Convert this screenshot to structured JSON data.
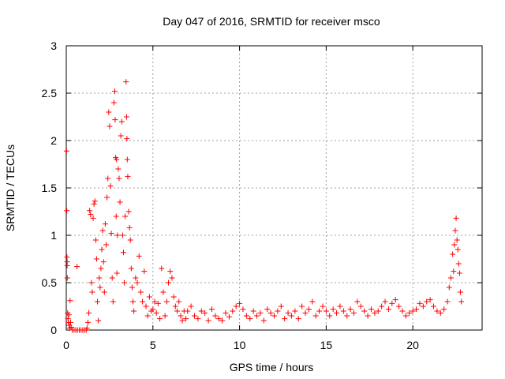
{
  "chart_data": {
    "type": "scatter",
    "title": "Day 047 of 2016, SRMTID for receiver msco",
    "xlabel": "GPS time / hours",
    "ylabel": "SRMTID / TECUs",
    "xlim": [
      0,
      24
    ],
    "ylim": [
      0,
      3
    ],
    "xticks": [
      "0",
      "5",
      "10",
      "15",
      "20"
    ],
    "yticks": [
      "0",
      "0.5",
      "1",
      "1.5",
      "2",
      "2.5",
      "3"
    ],
    "xtick_values": [
      0,
      5,
      10,
      15,
      20
    ],
    "ytick_values": [
      0,
      0.5,
      1,
      1.5,
      2,
      2.5,
      3
    ],
    "grid": true,
    "marker": "plus",
    "series": [
      {
        "name": "SRMTID",
        "color": "#ff0000",
        "points": [
          [
            0.02,
            1.89
          ],
          [
            0.03,
            1.26
          ],
          [
            0.04,
            0.77
          ],
          [
            0.05,
            0.72
          ],
          [
            0.05,
            0.68
          ],
          [
            0.06,
            0.55
          ],
          [
            0.08,
            0.18
          ],
          [
            0.1,
            0.12
          ],
          [
            0.12,
            0.08
          ],
          [
            0.15,
            0.16
          ],
          [
            0.18,
            0.05
          ],
          [
            0.2,
            0.02
          ],
          [
            0.22,
            0.31
          ],
          [
            0.25,
            0.08
          ],
          [
            0.28,
            0.03
          ],
          [
            0.35,
            0.0
          ],
          [
            0.45,
            0.0
          ],
          [
            0.55,
            0.0
          ],
          [
            0.62,
            0.67
          ],
          [
            0.65,
            0.0
          ],
          [
            0.75,
            0.0
          ],
          [
            0.85,
            0.0
          ],
          [
            0.95,
            0.0
          ],
          [
            1.05,
            0.0
          ],
          [
            1.15,
            0.0
          ],
          [
            1.2,
            0.02
          ],
          [
            1.25,
            0.08
          ],
          [
            1.3,
            0.18
          ],
          [
            1.35,
            1.26
          ],
          [
            1.4,
            1.22
          ],
          [
            1.45,
            0.5
          ],
          [
            1.5,
            0.4
          ],
          [
            1.55,
            1.18
          ],
          [
            1.6,
            1.33
          ],
          [
            1.65,
            1.36
          ],
          [
            1.7,
            0.95
          ],
          [
            1.75,
            0.75
          ],
          [
            1.8,
            0.3
          ],
          [
            1.85,
            0.1
          ],
          [
            1.9,
            0.55
          ],
          [
            1.95,
            0.45
          ],
          [
            2.0,
            0.65
          ],
          [
            2.05,
            0.85
          ],
          [
            2.1,
            1.05
          ],
          [
            2.15,
            0.72
          ],
          [
            2.2,
            0.4
          ],
          [
            2.25,
            1.12
          ],
          [
            2.3,
            0.9
          ],
          [
            2.35,
            1.4
          ],
          [
            2.4,
            1.6
          ],
          [
            2.45,
            2.3
          ],
          [
            2.5,
            2.15
          ],
          [
            2.55,
            1.52
          ],
          [
            2.6,
            1.02
          ],
          [
            2.65,
            0.55
          ],
          [
            2.7,
            0.3
          ],
          [
            2.75,
            2.4
          ],
          [
            2.8,
            2.52
          ],
          [
            2.82,
            2.22
          ],
          [
            2.85,
            1.82
          ],
          [
            2.88,
            1.2
          ],
          [
            2.9,
            1.8
          ],
          [
            2.92,
            0.6
          ],
          [
            2.95,
            1.0
          ],
          [
            3.0,
            1.7
          ],
          [
            3.05,
            1.6
          ],
          [
            3.1,
            1.35
          ],
          [
            3.15,
            2.05
          ],
          [
            3.2,
            2.2
          ],
          [
            3.25,
            1.0
          ],
          [
            3.3,
            0.82
          ],
          [
            3.35,
            0.5
          ],
          [
            3.4,
            1.2
          ],
          [
            3.45,
            2.62
          ],
          [
            3.48,
            2.25
          ],
          [
            3.5,
            2.02
          ],
          [
            3.52,
            1.8
          ],
          [
            3.55,
            1.62
          ],
          [
            3.6,
            1.25
          ],
          [
            3.65,
            1.08
          ],
          [
            3.7,
            0.95
          ],
          [
            3.75,
            0.65
          ],
          [
            3.8,
            0.45
          ],
          [
            3.85,
            0.3
          ],
          [
            3.9,
            0.2
          ],
          [
            4.0,
            0.55
          ],
          [
            4.1,
            0.5
          ],
          [
            4.2,
            0.78
          ],
          [
            4.3,
            0.4
          ],
          [
            4.4,
            0.3
          ],
          [
            4.5,
            0.62
          ],
          [
            4.6,
            0.25
          ],
          [
            4.7,
            0.15
          ],
          [
            4.8,
            0.35
          ],
          [
            4.9,
            0.2
          ],
          [
            5.0,
            0.22
          ],
          [
            5.1,
            0.3
          ],
          [
            5.2,
            0.18
          ],
          [
            5.3,
            0.28
          ],
          [
            5.4,
            0.12
          ],
          [
            5.5,
            0.65
          ],
          [
            5.6,
            0.4
          ],
          [
            5.7,
            0.15
          ],
          [
            5.8,
            0.3
          ],
          [
            5.9,
            0.5
          ],
          [
            6.0,
            0.62
          ],
          [
            6.1,
            0.55
          ],
          [
            6.2,
            0.35
          ],
          [
            6.3,
            0.25
          ],
          [
            6.4,
            0.2
          ],
          [
            6.5,
            0.3
          ],
          [
            6.6,
            0.15
          ],
          [
            6.7,
            0.1
          ],
          [
            6.8,
            0.2
          ],
          [
            6.9,
            0.12
          ],
          [
            7.0,
            0.2
          ],
          [
            7.2,
            0.25
          ],
          [
            7.4,
            0.15
          ],
          [
            7.6,
            0.12
          ],
          [
            7.8,
            0.2
          ],
          [
            8.0,
            0.18
          ],
          [
            8.2,
            0.1
          ],
          [
            8.4,
            0.22
          ],
          [
            8.6,
            0.15
          ],
          [
            8.8,
            0.12
          ],
          [
            9.0,
            0.1
          ],
          [
            9.2,
            0.18
          ],
          [
            9.4,
            0.14
          ],
          [
            9.6,
            0.2
          ],
          [
            9.8,
            0.25
          ],
          [
            10.0,
            0.28
          ],
          [
            10.2,
            0.22
          ],
          [
            10.4,
            0.15
          ],
          [
            10.6,
            0.12
          ],
          [
            10.8,
            0.2
          ],
          [
            11.0,
            0.15
          ],
          [
            11.2,
            0.18
          ],
          [
            11.4,
            0.1
          ],
          [
            11.6,
            0.22
          ],
          [
            11.8,
            0.18
          ],
          [
            12.0,
            0.15
          ],
          [
            12.2,
            0.2
          ],
          [
            12.4,
            0.25
          ],
          [
            12.6,
            0.12
          ],
          [
            12.8,
            0.18
          ],
          [
            13.0,
            0.15
          ],
          [
            13.2,
            0.2
          ],
          [
            13.4,
            0.12
          ],
          [
            13.6,
            0.25
          ],
          [
            13.8,
            0.18
          ],
          [
            14.0,
            0.22
          ],
          [
            14.2,
            0.3
          ],
          [
            14.4,
            0.15
          ],
          [
            14.6,
            0.2
          ],
          [
            14.8,
            0.25
          ],
          [
            15.0,
            0.2
          ],
          [
            15.2,
            0.15
          ],
          [
            15.4,
            0.22
          ],
          [
            15.6,
            0.18
          ],
          [
            15.8,
            0.25
          ],
          [
            16.0,
            0.2
          ],
          [
            16.2,
            0.15
          ],
          [
            16.4,
            0.22
          ],
          [
            16.6,
            0.18
          ],
          [
            16.8,
            0.3
          ],
          [
            17.0,
            0.25
          ],
          [
            17.2,
            0.2
          ],
          [
            17.4,
            0.15
          ],
          [
            17.6,
            0.22
          ],
          [
            17.8,
            0.18
          ],
          [
            18.0,
            0.2
          ],
          [
            18.2,
            0.25
          ],
          [
            18.4,
            0.3
          ],
          [
            18.6,
            0.22
          ],
          [
            18.8,
            0.28
          ],
          [
            19.0,
            0.32
          ],
          [
            19.2,
            0.25
          ],
          [
            19.4,
            0.2
          ],
          [
            19.6,
            0.15
          ],
          [
            19.8,
            0.18
          ],
          [
            20.0,
            0.2
          ],
          [
            20.2,
            0.22
          ],
          [
            20.4,
            0.28
          ],
          [
            20.6,
            0.25
          ],
          [
            20.8,
            0.3
          ],
          [
            21.0,
            0.32
          ],
          [
            21.2,
            0.25
          ],
          [
            21.4,
            0.2
          ],
          [
            21.6,
            0.18
          ],
          [
            21.8,
            0.22
          ],
          [
            22.0,
            0.3
          ],
          [
            22.1,
            0.45
          ],
          [
            22.2,
            0.55
          ],
          [
            22.3,
            0.8
          ],
          [
            22.35,
            0.62
          ],
          [
            22.4,
            0.9
          ],
          [
            22.45,
            1.05
          ],
          [
            22.5,
            1.18
          ],
          [
            22.55,
            0.95
          ],
          [
            22.6,
            0.85
          ],
          [
            22.65,
            0.7
          ],
          [
            22.7,
            0.6
          ],
          [
            22.75,
            0.4
          ],
          [
            22.8,
            0.3
          ]
        ]
      }
    ]
  }
}
